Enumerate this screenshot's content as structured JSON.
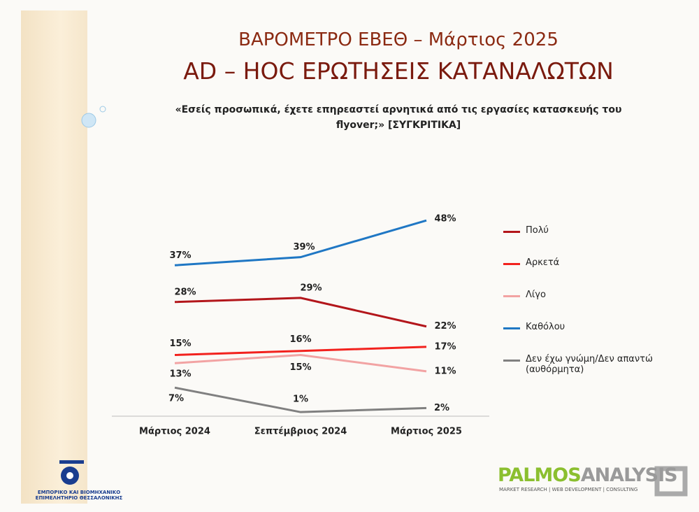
{
  "chart_data": {
    "type": "line",
    "title": "ΒΑΡΟΜΕΤΡΟ ΕΒΕΘ – Μάρτιος 2025",
    "subtitle": "AD – HOC ΕΡΩΤΗΣΕΙΣ ΚΑΤΑΝΑΛΩΤΩΝ",
    "question": "«Εσείς προσωπικά, έχετε επηρεαστεί αρνητικά από τις εργασίες κατασκευής του flyover;» [ΣΥΓΚΡΙΤΙΚΑ]",
    "categories": [
      "Μάρτιος 2024",
      "Σεπτέμβριος 2024",
      "Μάρτιος 2025"
    ],
    "series": [
      {
        "name": "Πολύ",
        "color": "#b3161b",
        "values": [
          28,
          29,
          22
        ],
        "value_labels": [
          "28%",
          "29%",
          "22%"
        ]
      },
      {
        "name": "Αρκετά",
        "color": "#f2221e",
        "values": [
          15,
          16,
          17
        ],
        "value_labels": [
          "15%",
          "16%",
          "17%"
        ]
      },
      {
        "name": "Λίγο",
        "color": "#f2a3a3",
        "values": [
          13,
          15,
          11
        ],
        "value_labels": [
          "13%",
          "15%",
          "11%"
        ]
      },
      {
        "name": "Καθόλου",
        "color": "#1f77c4",
        "values": [
          37,
          39,
          48
        ],
        "value_labels": [
          "37%",
          "39%",
          "48%"
        ]
      },
      {
        "name": "Δεν έχω γνώμη/Δεν απαντώ (αυθόρμητα)",
        "color": "#808080",
        "values": [
          7,
          1,
          2
        ],
        "value_labels": [
          "7%",
          "1%",
          "2%"
        ]
      }
    ]
  },
  "logos": {
    "chamber": "ΕΜΠΟΡΙΚΟ ΚΑΙ ΒΙΟΜΗΧΑΝΙΚΟ ΕΠΙΜΕΛΗΤΗΡΙΟ ΘΕΣΣΑΛΟΝΙΚΗΣ",
    "palmos": "PALMOS",
    "analysis": "ANALYSIS",
    "tagline": "MARKET RESEARCH | WEB DEVELOPMENT | CONSULTING"
  }
}
